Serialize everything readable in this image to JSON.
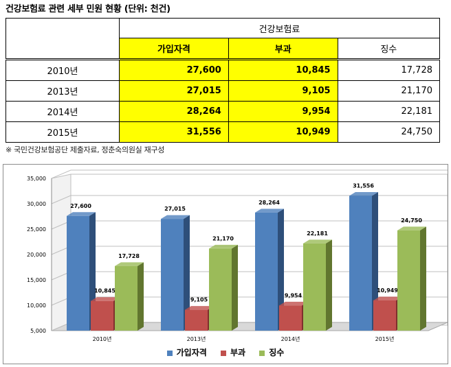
{
  "title": "건강보험료 관련 세부 민원 현황 (단위: 천건)",
  "table": {
    "group_header": "건강보험료",
    "col_headers": [
      "가입자격",
      "부과",
      "징수"
    ],
    "rows": [
      {
        "year": "2010년",
        "values": [
          "27,600",
          "10,845",
          "17,728"
        ]
      },
      {
        "year": "2013년",
        "values": [
          "27,015",
          "9,105",
          "21,170"
        ]
      },
      {
        "year": "2014년",
        "values": [
          "28,264",
          "9,954",
          "22,181"
        ]
      },
      {
        "year": "2015년",
        "values": [
          "31,556",
          "10,949",
          "24,750"
        ]
      }
    ]
  },
  "note": "※ 국민건강보험공단 제출자료, 정춘숙의원실 재구성",
  "colors": {
    "highlight": "#ffff00",
    "series": [
      "#4f81bd",
      "#c0504d",
      "#9bbb59"
    ],
    "series_dark": [
      "#2e4f7a",
      "#7f2f2d",
      "#61762f"
    ]
  },
  "chart_data": {
    "type": "bar",
    "categories": [
      "2010년",
      "2013년",
      "2014년",
      "2015년"
    ],
    "series": [
      {
        "name": "가입자격",
        "values": [
          27600,
          27015,
          28264,
          31556
        ],
        "labels": [
          "27,600",
          "27,015",
          "28,264",
          "31,556"
        ]
      },
      {
        "name": "부과",
        "values": [
          10845,
          9105,
          9954,
          10949
        ],
        "labels": [
          "10,845",
          "9,105",
          "9,954",
          "10,949"
        ]
      },
      {
        "name": "징수",
        "values": [
          17728,
          21170,
          22181,
          24750
        ],
        "labels": [
          "17,728",
          "21,170",
          "22,181",
          "24,750"
        ]
      }
    ],
    "ylim": [
      5000,
      35000
    ],
    "yticks": [
      "5,000",
      "10,000",
      "15,000",
      "20,000",
      "25,000",
      "30,000",
      "35,000"
    ],
    "grid": true,
    "legend_position": "bottom",
    "style": "3d-clustered-column"
  }
}
